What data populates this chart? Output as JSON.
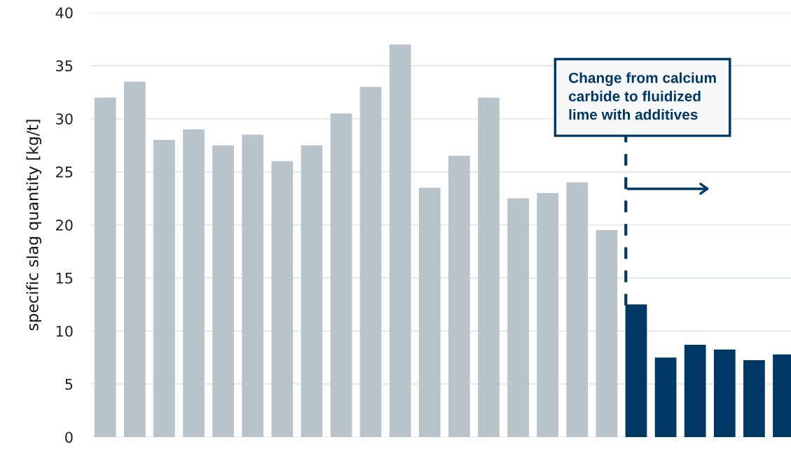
{
  "chart_data": {
    "type": "bar",
    "ylabel": "specific slag quantity [kg/t]",
    "categories": [
      null,
      null,
      null,
      null,
      null,
      null,
      null,
      null,
      null,
      null,
      null,
      null,
      null,
      null,
      null,
      null,
      null,
      null,
      null,
      null,
      null,
      null,
      null,
      null
    ],
    "values": [
      32.0,
      33.5,
      28.0,
      29.0,
      27.5,
      28.5,
      26.0,
      27.5,
      30.5,
      33.0,
      37.0,
      23.5,
      26.5,
      32.0,
      22.5,
      23.0,
      24.0,
      19.5,
      12.5,
      7.5,
      8.7,
      8.25,
      7.25,
      7.8
    ],
    "colors": [
      "#b8c4c9",
      "#b8c4c9",
      "#b8c4c9",
      "#b8c4c9",
      "#b8c4c9",
      "#b8c4c9",
      "#b8c4c9",
      "#b8c4c9",
      "#b8c4c9",
      "#b8c4c9",
      "#b8c4c9",
      "#b8c4c9",
      "#b8c4c9",
      "#b8c4c9",
      "#b8c4c9",
      "#b8c4c9",
      "#b8c4c9",
      "#b8c4c9",
      "#003865",
      "#003865",
      "#003865",
      "#003865",
      "#003865",
      "#003865"
    ],
    "ylim": [
      0,
      40
    ],
    "yticks": [
      0,
      5,
      10,
      15,
      20,
      25,
      30,
      35,
      40
    ],
    "grid": "y",
    "annotations": [
      "Change from calcium\ncarbide to fluidized\nlime with additives"
    ]
  }
}
